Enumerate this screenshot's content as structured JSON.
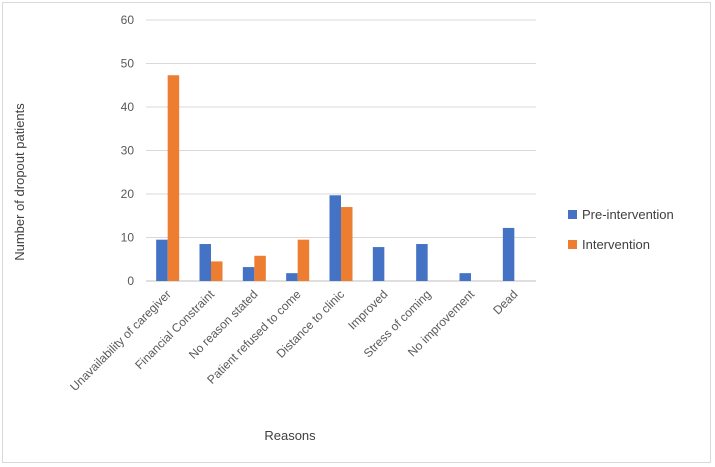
{
  "chart_data": {
    "type": "bar",
    "title": "",
    "xlabel": "Reasons",
    "ylabel": "Number of dropout patients",
    "ylim": [
      0,
      60
    ],
    "yticks": [
      0,
      10,
      20,
      30,
      40,
      50,
      60
    ],
    "grid": true,
    "legend_position": "right",
    "categories": [
      "Unavailability of caregiver",
      "Financial Constraint",
      "No reason stated",
      "Patient refused to come",
      "Distance to clinic",
      "Improved",
      "Stress of coming",
      "No improvement",
      "Dead"
    ],
    "series": [
      {
        "name": "Pre-intervention",
        "color": "#4472c4",
        "values": [
          9.5,
          8.5,
          3.2,
          1.8,
          19.7,
          7.8,
          8.5,
          1.8,
          12.2
        ]
      },
      {
        "name": "Intervention",
        "color": "#ed7d31",
        "values": [
          47.3,
          4.5,
          5.8,
          9.5,
          17.0,
          0,
          0,
          0,
          0
        ]
      }
    ]
  }
}
